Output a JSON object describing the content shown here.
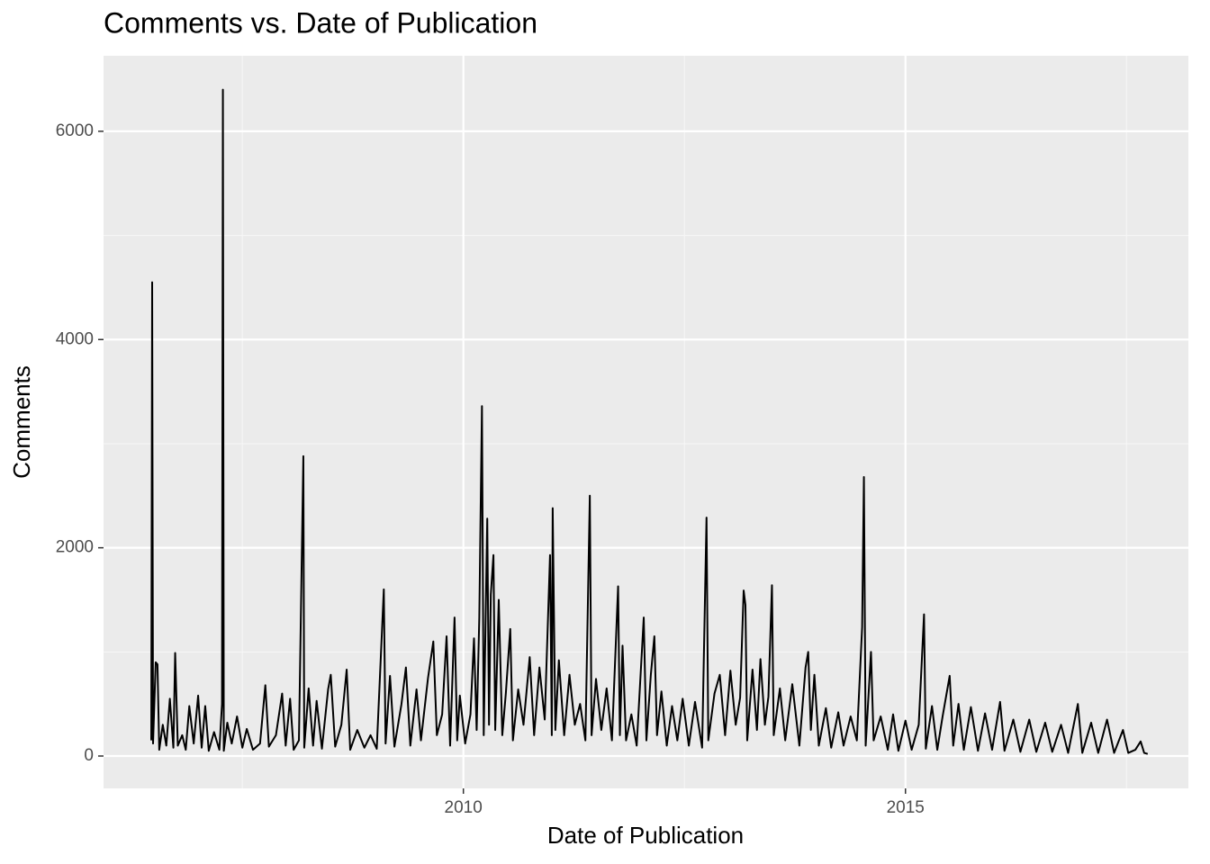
{
  "chart_data": {
    "type": "line",
    "title": "Comments vs. Date of Publication",
    "x_label": "Date of Publication",
    "y_label": "Comments",
    "xlim": [
      2005.93,
      2018.2
    ],
    "ylim": [
      -311,
      6725
    ],
    "xticks": [
      2010,
      2015
    ],
    "yticks": [
      0,
      2000,
      4000,
      6000
    ],
    "grid": true,
    "series": [
      {
        "name": "Comments",
        "color": "#000000",
        "x": [
          2006.47,
          2006.48,
          2006.49,
          2006.52,
          2006.54,
          2006.56,
          2006.6,
          2006.64,
          2006.68,
          2006.72,
          2006.74,
          2006.77,
          2006.82,
          2006.86,
          2006.9,
          2006.95,
          2007.0,
          2007.04,
          2007.08,
          2007.12,
          2007.18,
          2007.24,
          2007.27,
          2007.28,
          2007.29,
          2007.33,
          2007.38,
          2007.44,
          2007.5,
          2007.55,
          2007.62,
          2007.7,
          2007.76,
          2007.8,
          2007.88,
          2007.95,
          2007.99,
          2008.04,
          2008.08,
          2008.14,
          2008.19,
          2008.2,
          2008.25,
          2008.3,
          2008.34,
          2008.4,
          2008.47,
          2008.5,
          2008.55,
          2008.62,
          2008.68,
          2008.72,
          2008.8,
          2008.88,
          2008.95,
          2009.02,
          2009.1,
          2009.12,
          2009.17,
          2009.22,
          2009.3,
          2009.35,
          2009.4,
          2009.47,
          2009.52,
          2009.6,
          2009.66,
          2009.7,
          2009.76,
          2009.81,
          2009.85,
          2009.9,
          2009.93,
          2009.96,
          2010.02,
          2010.08,
          2010.12,
          2010.15,
          2010.18,
          2010.21,
          2010.23,
          2010.27,
          2010.29,
          2010.31,
          2010.34,
          2010.36,
          2010.4,
          2010.44,
          2010.48,
          2010.53,
          2010.56,
          2010.62,
          2010.68,
          2010.75,
          2010.8,
          2010.86,
          2010.92,
          2010.98,
          2011.0,
          2011.01,
          2011.04,
          2011.08,
          2011.14,
          2011.2,
          2011.26,
          2011.32,
          2011.38,
          2011.43,
          2011.45,
          2011.5,
          2011.56,
          2011.62,
          2011.68,
          2011.75,
          2011.77,
          2011.8,
          2011.84,
          2011.9,
          2011.96,
          2012.04,
          2012.07,
          2012.12,
          2012.16,
          2012.19,
          2012.24,
          2012.3,
          2012.36,
          2012.42,
          2012.48,
          2012.55,
          2012.62,
          2012.7,
          2012.75,
          2012.77,
          2012.84,
          2012.9,
          2012.96,
          2013.02,
          2013.08,
          2013.13,
          2013.17,
          2013.19,
          2013.21,
          2013.27,
          2013.32,
          2013.36,
          2013.41,
          2013.45,
          2013.49,
          2013.51,
          2013.58,
          2013.64,
          2013.72,
          2013.8,
          2013.87,
          2013.9,
          2013.93,
          2013.97,
          2014.02,
          2014.1,
          2014.16,
          2014.24,
          2014.3,
          2014.38,
          2014.45,
          2014.51,
          2014.53,
          2014.55,
          2014.61,
          2014.64,
          2014.72,
          2014.8,
          2014.86,
          2014.92,
          2015.0,
          2015.07,
          2015.15,
          2015.21,
          2015.23,
          2015.3,
          2015.36,
          2015.42,
          2015.5,
          2015.54,
          2015.6,
          2015.66,
          2015.74,
          2015.82,
          2015.9,
          2015.98,
          2016.07,
          2016.12,
          2016.22,
          2016.3,
          2016.4,
          2016.48,
          2016.58,
          2016.66,
          2016.76,
          2016.84,
          2016.95,
          2017.0,
          2017.1,
          2017.18,
          2017.28,
          2017.36,
          2017.46,
          2017.52,
          2017.6,
          2017.66,
          2017.7,
          2017.74
        ],
        "values": [
          150,
          4550,
          120,
          900,
          880,
          60,
          300,
          100,
          550,
          80,
          990,
          100,
          200,
          60,
          480,
          120,
          580,
          80,
          480,
          50,
          230,
          60,
          500,
          6400,
          50,
          320,
          120,
          380,
          80,
          260,
          60,
          120,
          680,
          90,
          200,
          600,
          100,
          550,
          60,
          150,
          2880,
          80,
          650,
          100,
          530,
          70,
          640,
          780,
          90,
          300,
          830,
          60,
          250,
          80,
          200,
          70,
          1600,
          120,
          770,
          90,
          500,
          850,
          100,
          640,
          150,
          750,
          1100,
          200,
          400,
          1150,
          100,
          1330,
          150,
          580,
          120,
          400,
          1130,
          250,
          1330,
          3360,
          200,
          2280,
          300,
          1550,
          1930,
          250,
          1500,
          200,
          600,
          1220,
          150,
          640,
          300,
          950,
          200,
          850,
          350,
          1930,
          200,
          2380,
          250,
          920,
          200,
          780,
          300,
          500,
          150,
          2500,
          200,
          740,
          250,
          650,
          150,
          1630,
          200,
          1060,
          150,
          400,
          100,
          1330,
          150,
          780,
          1150,
          200,
          620,
          100,
          480,
          150,
          550,
          100,
          520,
          80,
          2290,
          150,
          600,
          780,
          200,
          820,
          300,
          560,
          1590,
          1450,
          150,
          830,
          250,
          930,
          300,
          570,
          1640,
          200,
          650,
          150,
          690,
          100,
          850,
          1000,
          250,
          780,
          100,
          460,
          80,
          420,
          100,
          380,
          150,
          1240,
          2680,
          100,
          1000,
          150,
          380,
          60,
          400,
          50,
          340,
          60,
          300,
          1360,
          70,
          480,
          60,
          380,
          770,
          100,
          500,
          60,
          470,
          50,
          410,
          60,
          520,
          50,
          350,
          40,
          350,
          40,
          320,
          40,
          300,
          30,
          500,
          30,
          320,
          30,
          350,
          30,
          250,
          30,
          60,
          140,
          30,
          20
        ]
      }
    ]
  }
}
